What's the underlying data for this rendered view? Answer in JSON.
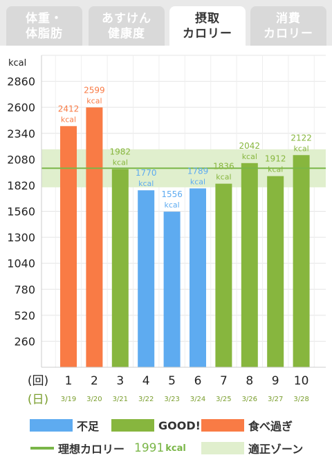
{
  "tabs": [
    {
      "line1": "体重・",
      "line2": "体脂肪",
      "active": false
    },
    {
      "line1": "あすけん",
      "line2": "健康度",
      "active": false
    },
    {
      "line1": "摂取",
      "line2": "カロリー",
      "active": true
    },
    {
      "line1": "消費",
      "line2": "カロリー",
      "active": false
    }
  ],
  "colors": {
    "shortage": "#5eabf0",
    "good": "#87b63e",
    "over": "#f97b45",
    "ideal_line": "#7ab648",
    "zone": "#e0efcd"
  },
  "chart_data": {
    "type": "bar",
    "y_unit": "kcal",
    "yticks": [
      260,
      520,
      780,
      1040,
      1300,
      1560,
      1820,
      2080,
      2340,
      2600,
      2860
    ],
    "ylim": [
      0,
      3120
    ],
    "x_axis_label": "(回)",
    "date_axis_label": "(日)",
    "categories": [
      "1",
      "2",
      "3",
      "4",
      "5",
      "6",
      "7",
      "8",
      "9",
      "10"
    ],
    "dates": [
      "3/19",
      "3/20",
      "3/21",
      "3/22",
      "3/23",
      "3/24",
      "3/25",
      "3/26",
      "3/27",
      "3/28"
    ],
    "values": [
      2412,
      2599,
      1982,
      1770,
      1556,
      1789,
      1836,
      2042,
      1912,
      2122
    ],
    "status": [
      "over",
      "over",
      "good",
      "shortage",
      "shortage",
      "shortage",
      "good",
      "good",
      "good",
      "good"
    ],
    "value_unit": "kcal",
    "ideal_calorie": 1991,
    "zone_range": [
      1800,
      2180
    ]
  },
  "legend": {
    "shortage": "不足",
    "good": "GOOD!",
    "over": "食べ過ぎ",
    "ideal_label": "理想カロリー",
    "ideal_value": "1991",
    "ideal_unit": "kcal",
    "zone_label": "適正ゾーン"
  }
}
